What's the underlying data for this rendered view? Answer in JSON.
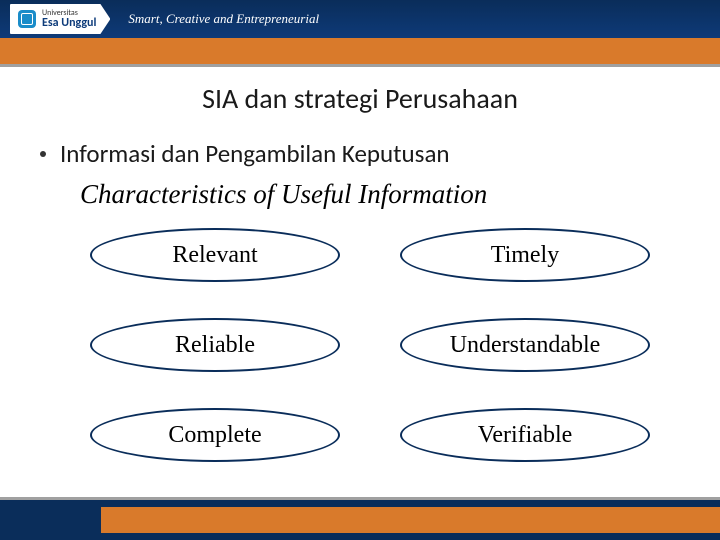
{
  "header": {
    "university_small": "Universitas",
    "university_name": "Esa Unggul",
    "tagline": "Smart, Creative and Entrepreneurial"
  },
  "slide": {
    "title": "SIA dan strategi Perusahaan",
    "bullet": "Informasi dan Pengambilan Keputusan",
    "subtitle": "Characteristics of Useful Information"
  },
  "characteristics": [
    {
      "label": "Relevant"
    },
    {
      "label": "Timely"
    },
    {
      "label": "Reliable"
    },
    {
      "label": "Understandable"
    },
    {
      "label": "Complete"
    },
    {
      "label": "Verifiable"
    }
  ],
  "colors": {
    "navy": "#0a2d5a",
    "orange": "#d97a2b",
    "gray": "#a0a0a0"
  }
}
